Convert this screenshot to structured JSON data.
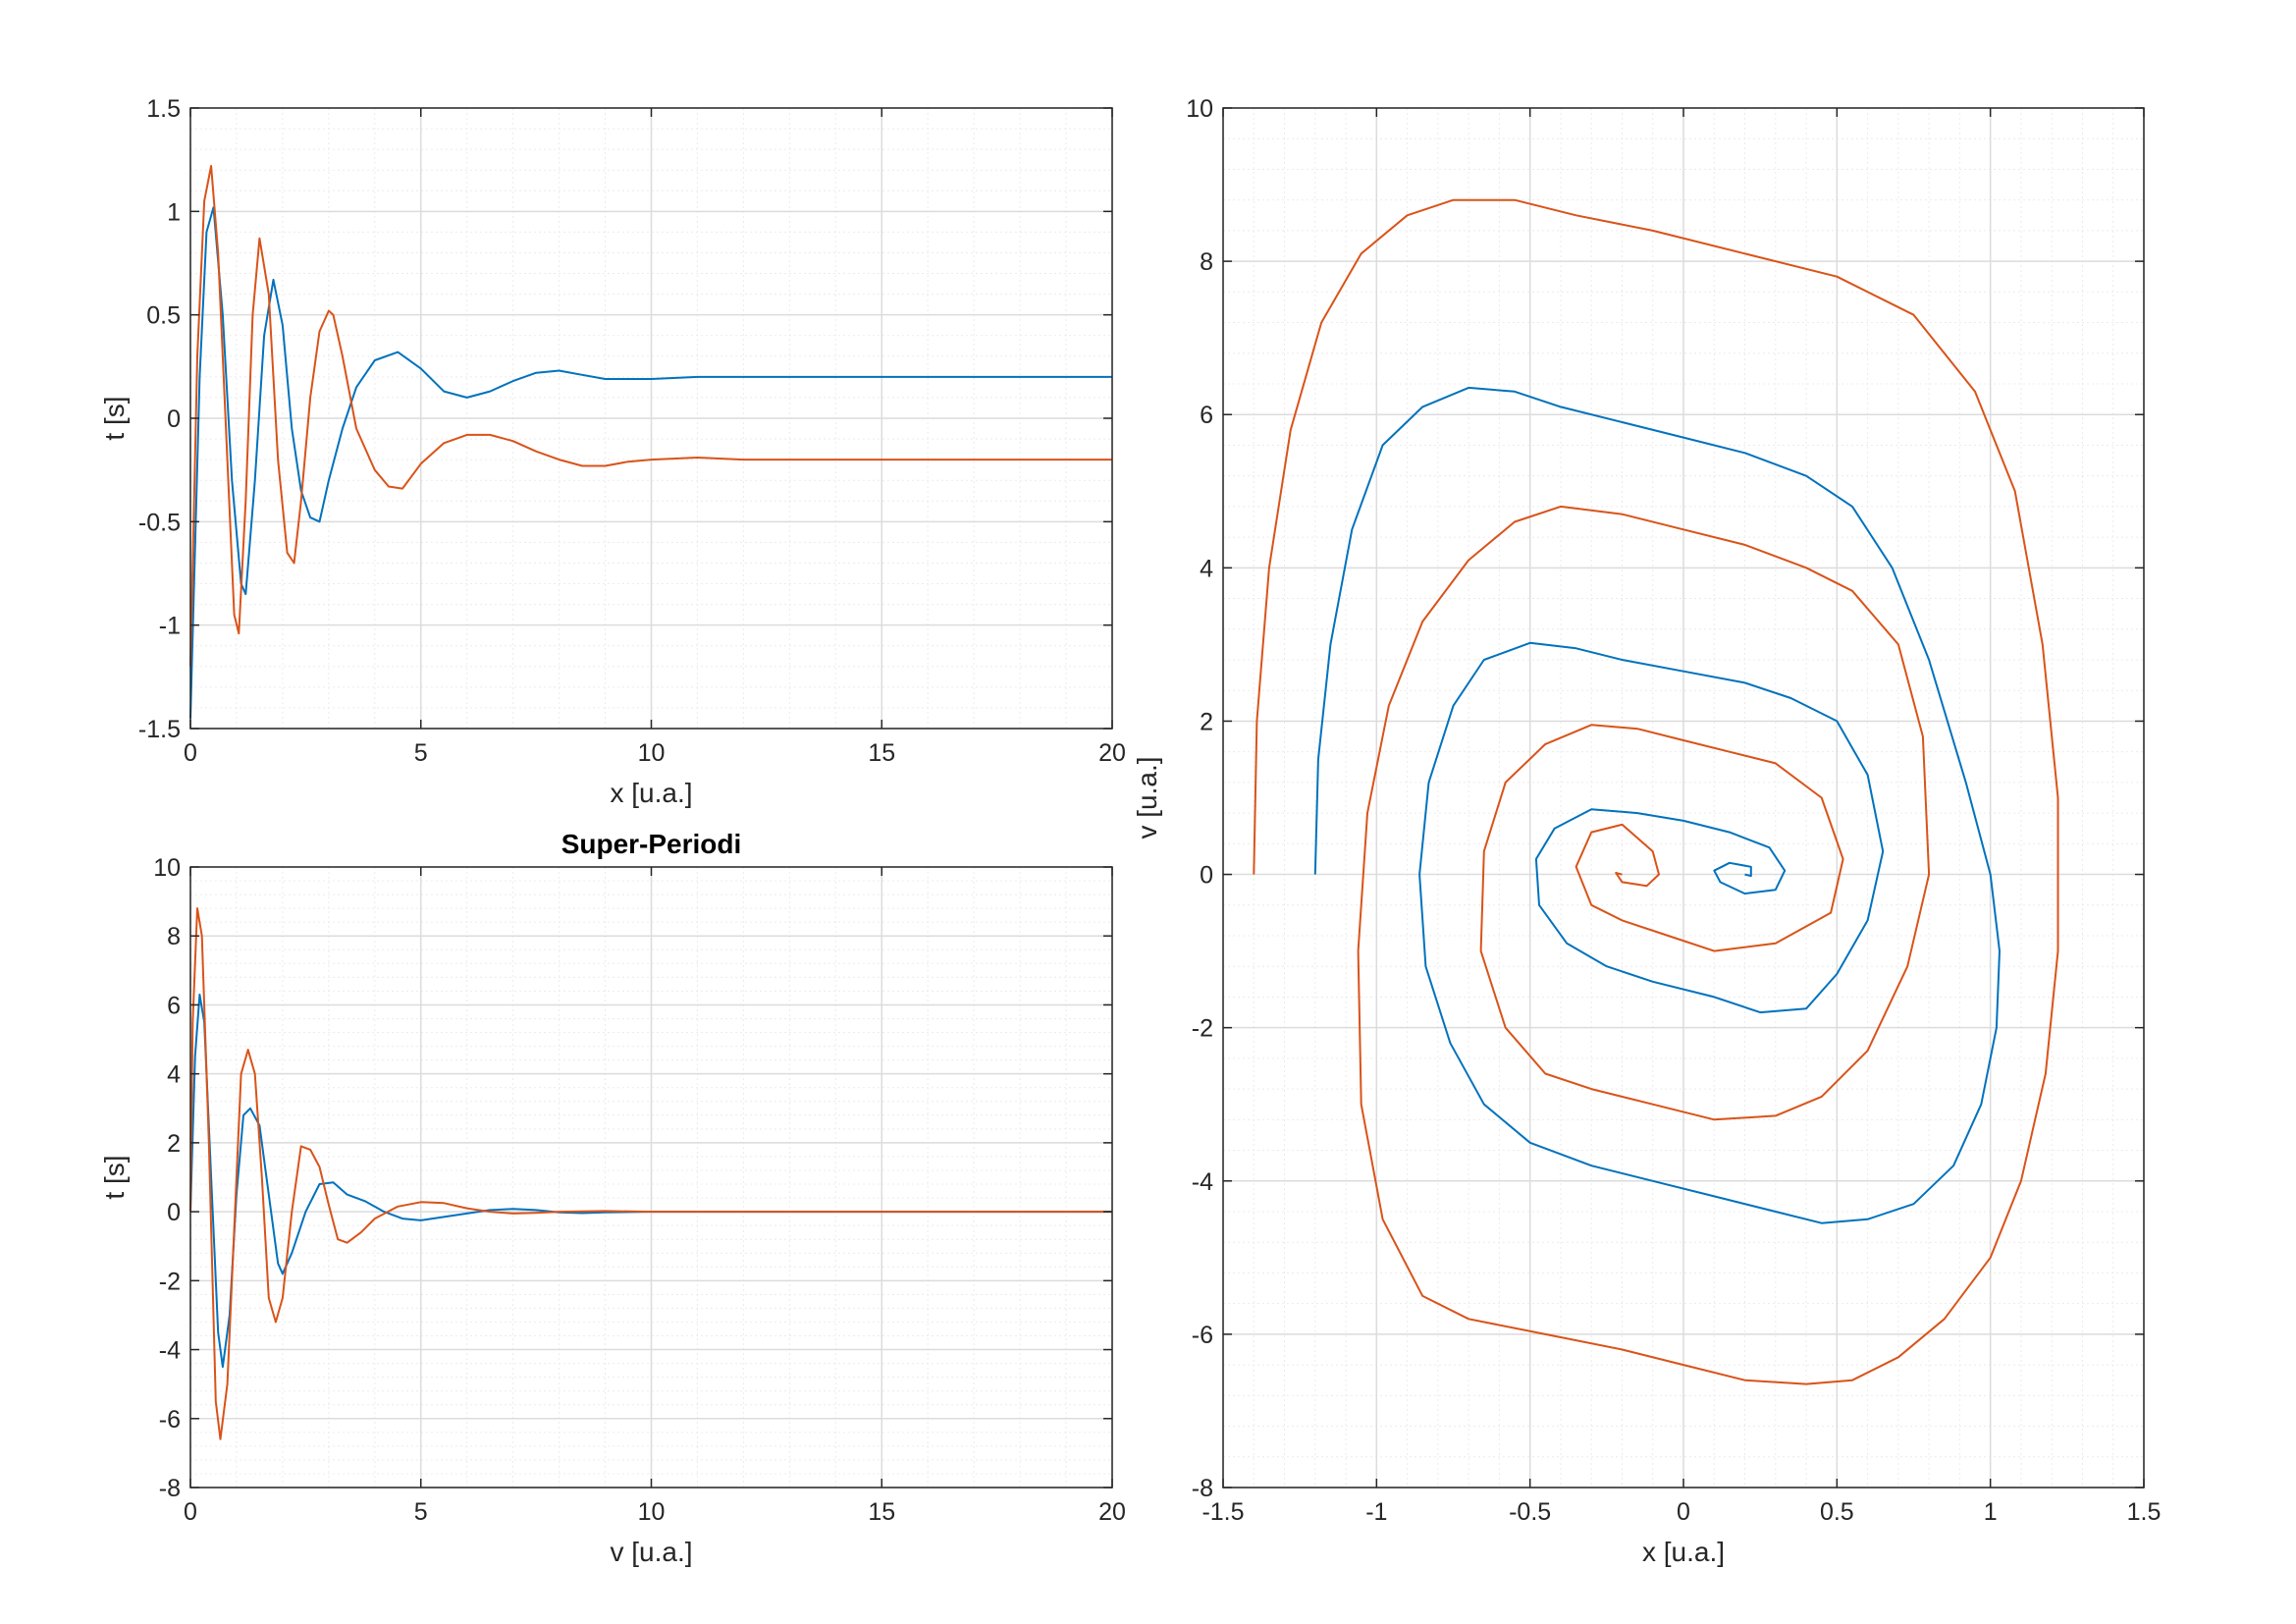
{
  "colors": {
    "series1": "#0072BD",
    "series2": "#D95319",
    "grid_major": "#dcdcdc",
    "grid_minor": "#ececec",
    "axis": "#262626"
  },
  "chart_data": [
    {
      "type": "line",
      "title": "",
      "xlabel": "x [u.a.]",
      "ylabel": "t [s]",
      "xlim": [
        0,
        20
      ],
      "ylim": [
        -1.5,
        1.5
      ],
      "xticks": [
        0,
        5,
        10,
        15,
        20
      ],
      "yticks": [
        -1.5,
        -1,
        -0.5,
        0,
        0.5,
        1,
        1.5
      ],
      "xtick_labels": [
        "0",
        "5",
        "10",
        "15",
        "20"
      ],
      "ytick_labels": [
        "-1.5",
        "-1",
        "-0.5",
        "0",
        "0.5",
        "1",
        "1.5"
      ],
      "grid": "major+minor",
      "series": [
        {
          "color": "series1",
          "x": [
            0,
            0.2,
            0.35,
            0.5,
            0.7,
            0.9,
            1.1,
            1.2,
            1.4,
            1.6,
            1.8,
            2.0,
            2.2,
            2.4,
            2.6,
            2.8,
            3.0,
            3.3,
            3.6,
            4.0,
            4.5,
            5.0,
            5.5,
            6.0,
            6.5,
            7.0,
            7.5,
            8.0,
            8.5,
            9.0,
            9.5,
            10,
            11,
            12,
            14,
            16,
            18,
            20
          ],
          "values": [
            -1.45,
            0.2,
            0.9,
            1.02,
            0.5,
            -0.3,
            -0.8,
            -0.85,
            -0.3,
            0.4,
            0.67,
            0.45,
            -0.05,
            -0.35,
            -0.48,
            -0.5,
            -0.3,
            -0.05,
            0.15,
            0.28,
            0.32,
            0.24,
            0.13,
            0.1,
            0.13,
            0.18,
            0.22,
            0.23,
            0.21,
            0.19,
            0.19,
            0.19,
            0.2,
            0.2,
            0.2,
            0.2,
            0.2,
            0.2
          ]
        },
        {
          "color": "series2",
          "x": [
            0,
            0.15,
            0.3,
            0.45,
            0.6,
            0.8,
            0.95,
            1.05,
            1.2,
            1.35,
            1.5,
            1.7,
            1.9,
            2.1,
            2.25,
            2.4,
            2.6,
            2.8,
            3.0,
            3.1,
            3.3,
            3.6,
            4.0,
            4.3,
            4.6,
            5.0,
            5.5,
            6.0,
            6.5,
            7.0,
            7.5,
            8.0,
            8.5,
            9.0,
            9.5,
            10,
            11,
            12,
            14,
            16,
            18,
            20
          ],
          "values": [
            -1.2,
            0.3,
            1.05,
            1.22,
            0.8,
            -0.2,
            -0.95,
            -1.04,
            -0.4,
            0.5,
            0.87,
            0.6,
            -0.2,
            -0.65,
            -0.7,
            -0.4,
            0.1,
            0.42,
            0.52,
            0.5,
            0.3,
            -0.05,
            -0.25,
            -0.33,
            -0.34,
            -0.22,
            -0.12,
            -0.08,
            -0.08,
            -0.11,
            -0.16,
            -0.2,
            -0.23,
            -0.23,
            -0.21,
            -0.2,
            -0.19,
            -0.2,
            -0.2,
            -0.2,
            -0.2,
            -0.2
          ]
        }
      ]
    },
    {
      "type": "line",
      "title": "Super-Periodi",
      "xlabel": "v [u.a.]",
      "ylabel": "t [s]",
      "xlim": [
        0,
        20
      ],
      "ylim": [
        -8,
        10
      ],
      "xticks": [
        0,
        5,
        10,
        15,
        20
      ],
      "yticks": [
        -8,
        -6,
        -4,
        -2,
        0,
        2,
        4,
        6,
        8,
        10
      ],
      "xtick_labels": [
        "0",
        "5",
        "10",
        "15",
        "20"
      ],
      "ytick_labels": [
        "-8",
        "-6",
        "-4",
        "-2",
        "0",
        "2",
        "4",
        "6",
        "8",
        "10"
      ],
      "grid": "major+minor",
      "series": [
        {
          "color": "series1",
          "x": [
            0,
            0.1,
            0.2,
            0.3,
            0.45,
            0.6,
            0.7,
            0.85,
            1.0,
            1.15,
            1.3,
            1.5,
            1.7,
            1.9,
            2.0,
            2.2,
            2.5,
            2.8,
            3.1,
            3.4,
            3.8,
            4.2,
            4.6,
            5.0,
            5.5,
            6.0,
            6.5,
            7.0,
            7.5,
            8.0,
            8.5,
            9.0,
            10,
            12,
            14,
            16,
            18,
            20
          ],
          "values": [
            0,
            4.5,
            6.3,
            5.5,
            1.0,
            -3.5,
            -4.5,
            -3.0,
            0.5,
            2.8,
            3.0,
            2.5,
            0.5,
            -1.5,
            -1.8,
            -1.2,
            0.0,
            0.8,
            0.85,
            0.5,
            0.3,
            0.0,
            -0.2,
            -0.25,
            -0.15,
            -0.05,
            0.05,
            0.08,
            0.05,
            -0.02,
            -0.04,
            -0.02,
            0,
            0,
            0,
            0,
            0,
            0
          ]
        },
        {
          "color": "series2",
          "x": [
            0,
            0.05,
            0.15,
            0.25,
            0.4,
            0.55,
            0.65,
            0.8,
            0.95,
            1.1,
            1.25,
            1.4,
            1.55,
            1.7,
            1.85,
            2.0,
            2.2,
            2.4,
            2.6,
            2.8,
            3.0,
            3.2,
            3.4,
            3.7,
            4.0,
            4.5,
            5.0,
            5.5,
            6.0,
            6.5,
            7.0,
            7.5,
            8.0,
            9.0,
            10,
            12,
            14,
            16,
            18,
            20
          ],
          "values": [
            0,
            5.5,
            8.8,
            8.0,
            2.0,
            -5.5,
            -6.6,
            -5.0,
            -0.5,
            4.0,
            4.7,
            4.0,
            1.0,
            -2.5,
            -3.2,
            -2.5,
            0.0,
            1.9,
            1.8,
            1.3,
            0.2,
            -0.8,
            -0.9,
            -0.6,
            -0.2,
            0.15,
            0.28,
            0.25,
            0.1,
            0.0,
            -0.05,
            -0.03,
            0.0,
            0.02,
            0,
            0,
            0,
            0,
            0,
            0
          ]
        }
      ]
    },
    {
      "type": "line",
      "title": "",
      "xlabel": "x [u.a.]",
      "ylabel": "v [u.a.]",
      "xlim": [
        -1.5,
        1.5
      ],
      "ylim": [
        -8,
        10
      ],
      "xticks": [
        -1.5,
        -1,
        -0.5,
        0,
        0.5,
        1,
        1.5
      ],
      "yticks": [
        -8,
        -6,
        -4,
        -2,
        0,
        2,
        4,
        6,
        8,
        10
      ],
      "xtick_labels": [
        "-1.5",
        "-1",
        "-0.5",
        "0",
        "0.5",
        "1",
        "1.5"
      ],
      "ytick_labels": [
        "-8",
        "-6",
        "-4",
        "-2",
        "0",
        "2",
        "4",
        "6",
        "8",
        "10"
      ],
      "grid": "major+minor",
      "series": [
        {
          "color": "series1",
          "x": [
            -1.2,
            -1.19,
            -1.15,
            -1.08,
            -0.98,
            -0.85,
            -0.7,
            -0.55,
            -0.4,
            -0.2,
            0.0,
            0.2,
            0.4,
            0.55,
            0.68,
            0.8,
            0.92,
            1.0,
            1.03,
            1.02,
            0.97,
            0.88,
            0.75,
            0.6,
            0.45,
            0.3,
            0.1,
            -0.1,
            -0.3,
            -0.5,
            -0.65,
            -0.76,
            -0.84,
            -0.86,
            -0.83,
            -0.75,
            -0.65,
            -0.5,
            -0.35,
            -0.2,
            0.0,
            0.2,
            0.35,
            0.5,
            0.6,
            0.65,
            0.6,
            0.5,
            0.4,
            0.25,
            0.1,
            -0.1,
            -0.25,
            -0.38,
            -0.47,
            -0.48,
            -0.42,
            -0.3,
            -0.15,
            0.0,
            0.15,
            0.28,
            0.33,
            0.3,
            0.2,
            0.12,
            0.1,
            0.15,
            0.22,
            0.22,
            0.2
          ],
          "values": [
            0,
            1.5,
            3.0,
            4.5,
            5.6,
            6.1,
            6.35,
            6.3,
            6.1,
            5.9,
            5.7,
            5.5,
            5.2,
            4.8,
            4.0,
            2.8,
            1.2,
            0.0,
            -1.0,
            -2.0,
            -3.0,
            -3.8,
            -4.3,
            -4.5,
            -4.55,
            -4.4,
            -4.2,
            -4.0,
            -3.8,
            -3.5,
            -3.0,
            -2.2,
            -1.2,
            0.0,
            1.2,
            2.2,
            2.8,
            3.02,
            2.95,
            2.8,
            2.65,
            2.5,
            2.3,
            2.0,
            1.3,
            0.3,
            -0.6,
            -1.3,
            -1.75,
            -1.8,
            -1.6,
            -1.4,
            -1.2,
            -0.9,
            -0.4,
            0.2,
            0.6,
            0.85,
            0.8,
            0.7,
            0.55,
            0.35,
            0.05,
            -0.2,
            -0.25,
            -0.1,
            0.05,
            0.15,
            0.1,
            -0.02,
            0.0
          ]
        },
        {
          "color": "series2",
          "x": [
            -1.4,
            -1.39,
            -1.35,
            -1.28,
            -1.18,
            -1.05,
            -0.9,
            -0.75,
            -0.55,
            -0.35,
            -0.1,
            0.2,
            0.5,
            0.75,
            0.95,
            1.08,
            1.17,
            1.22,
            1.22,
            1.18,
            1.1,
            1.0,
            0.85,
            0.7,
            0.55,
            0.4,
            0.2,
            0.0,
            -0.2,
            -0.45,
            -0.7,
            -0.85,
            -0.98,
            -1.05,
            -1.06,
            -1.03,
            -0.96,
            -0.85,
            -0.7,
            -0.55,
            -0.4,
            -0.2,
            0.0,
            0.2,
            0.4,
            0.55,
            0.7,
            0.78,
            0.8,
            0.73,
            0.6,
            0.45,
            0.3,
            0.1,
            -0.1,
            -0.3,
            -0.45,
            -0.58,
            -0.66,
            -0.65,
            -0.58,
            -0.45,
            -0.3,
            -0.15,
            0.0,
            0.15,
            0.3,
            0.45,
            0.52,
            0.48,
            0.3,
            0.1,
            -0.05,
            -0.2,
            -0.3,
            -0.35,
            -0.3,
            -0.2,
            -0.1,
            -0.08,
            -0.12,
            -0.2,
            -0.22,
            -0.2
          ],
          "values": [
            0,
            2.0,
            4.0,
            5.8,
            7.2,
            8.1,
            8.6,
            8.8,
            8.8,
            8.6,
            8.4,
            8.1,
            7.8,
            7.3,
            6.3,
            5.0,
            3.0,
            1.0,
            -1.0,
            -2.6,
            -4.0,
            -5.0,
            -5.8,
            -6.3,
            -6.6,
            -6.65,
            -6.6,
            -6.4,
            -6.2,
            -6.0,
            -5.8,
            -5.5,
            -4.5,
            -3.0,
            -1.0,
            0.8,
            2.2,
            3.3,
            4.1,
            4.6,
            4.8,
            4.7,
            4.5,
            4.3,
            4.0,
            3.7,
            3.0,
            1.8,
            0.0,
            -1.2,
            -2.3,
            -2.9,
            -3.15,
            -3.2,
            -3.0,
            -2.8,
            -2.6,
            -2.0,
            -1.0,
            0.3,
            1.2,
            1.7,
            1.95,
            1.9,
            1.75,
            1.6,
            1.45,
            1.0,
            0.2,
            -0.5,
            -0.9,
            -1.0,
            -0.8,
            -0.6,
            -0.4,
            0.1,
            0.55,
            0.65,
            0.3,
            0.0,
            -0.15,
            -0.1,
            0.02,
            0.0
          ]
        }
      ]
    }
  ]
}
